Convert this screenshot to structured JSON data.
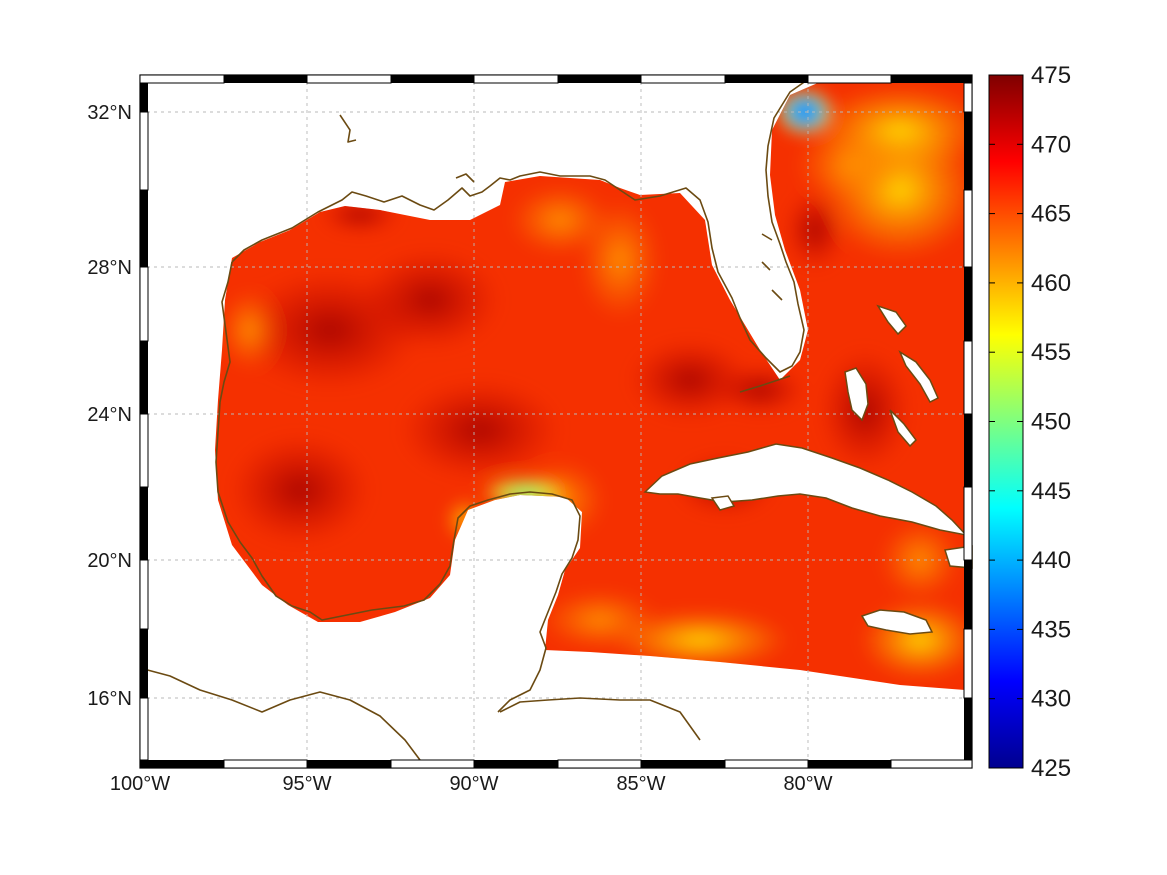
{
  "map": {
    "lon_labels": [
      "100°W",
      "95°W",
      "90°W",
      "85°W",
      "80°W"
    ],
    "lat_labels": [
      "16°N",
      "20°N",
      "24°N",
      "28°N",
      "32°N"
    ],
    "colorbar": {
      "min": 425,
      "max": 475,
      "tick_labels": [
        "425",
        "430",
        "435",
        "440",
        "445",
        "450",
        "455",
        "460",
        "465",
        "470",
        "475"
      ],
      "colormap": "jet"
    },
    "colors": {
      "coastline": "#6b4a12",
      "frame": "#000000",
      "grid": "#b8b8b8"
    }
  }
}
